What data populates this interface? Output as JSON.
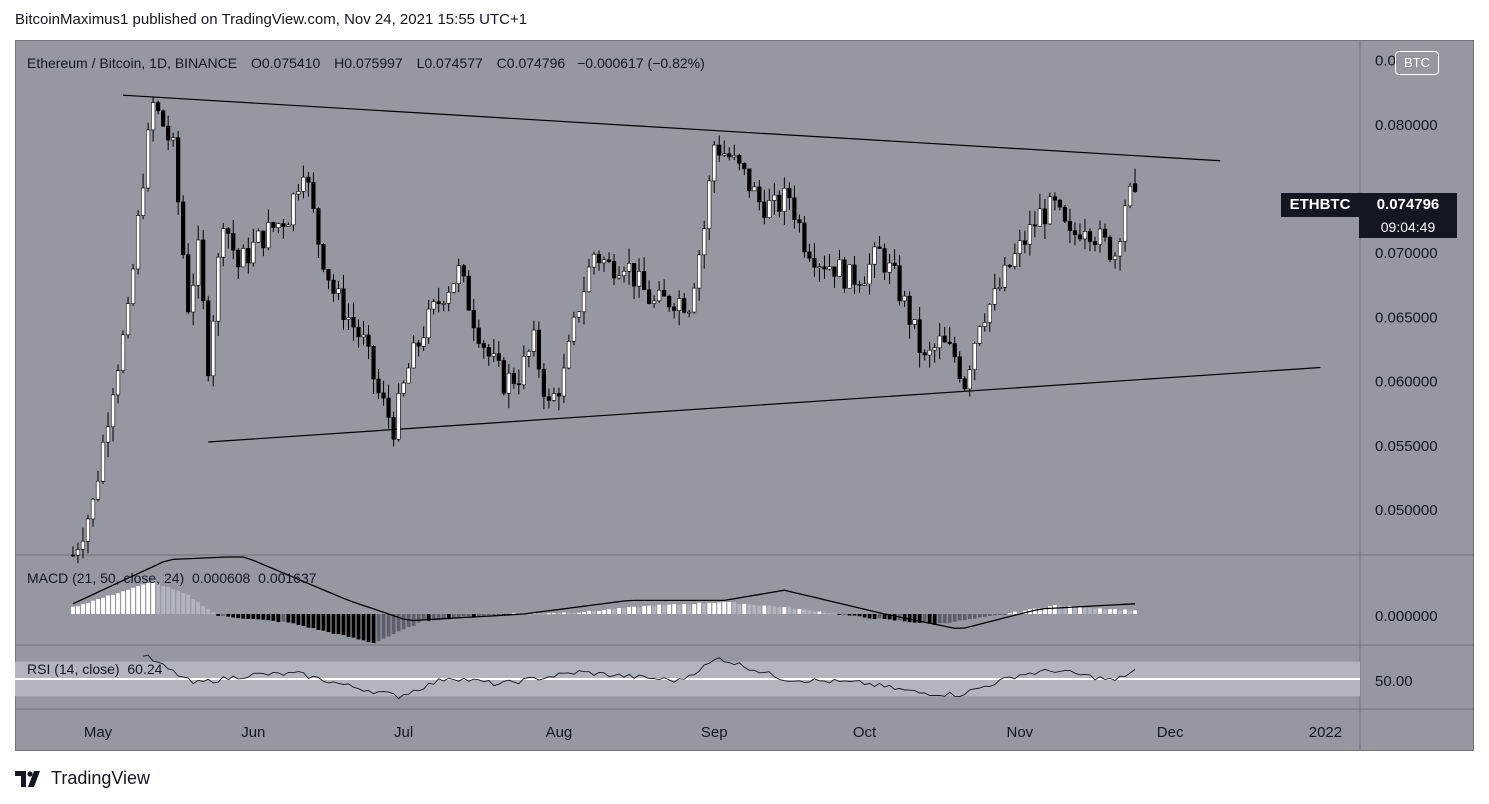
{
  "publisher_line": "BitcoinMaximus1 published on TradingView.com, Nov 24, 2021 15:55 UTC+1",
  "legend": {
    "symbol": "Ethereum / Bitcoin, 1D, BINANCE",
    "o_label": "O",
    "o_value": "0.075410",
    "h_label": "H",
    "h_value": "0.075997",
    "l_label": "L",
    "l_value": "0.074577",
    "c_label": "C",
    "c_value": "0.074796",
    "change": "−0.000617 (−0.82%)"
  },
  "currency_badge": "BTC",
  "price_tag": {
    "symbol": "ETHBTC",
    "price": "0.074796",
    "countdown": "09:04:49"
  },
  "macd_legend": {
    "label": "MACD (21, 50, close, 24)",
    "value1": "0.000608",
    "value2": "0.001637"
  },
  "rsi_legend": {
    "label": "RSI (14, close)",
    "value": "60.24"
  },
  "brand": "TradingView",
  "colors": {
    "background": "#9598a1",
    "up": "#ffffff",
    "down": "#000000",
    "line": "#000000"
  },
  "chart_data": {
    "type": "candlestick",
    "x_axis_labels": [
      "May",
      "Jun",
      "Jul",
      "Aug",
      "Sep",
      "Oct",
      "Nov",
      "Dec",
      "2022"
    ],
    "price_axis_labels": [
      "0.085000",
      "0.080000",
      "0.070000",
      "0.065000",
      "0.060000",
      "0.055000",
      "0.050000"
    ],
    "price_range": [
      0.0465,
      0.0866
    ],
    "macd_axis_label": "0.000000",
    "rsi_axis_label": "50.00",
    "rsi_band": [
      30,
      70
    ],
    "trendlines": [
      {
        "from": [
          "2021-05-06",
          0.0823
        ],
        "to": [
          "2021-12-11",
          0.0772
        ]
      },
      {
        "from": [
          "2021-05-23",
          0.0553
        ],
        "to": [
          "2021-12-31",
          0.0611
        ]
      }
    ],
    "daily_close_path": [
      [
        "2021-04-26",
        0.0465
      ],
      [
        "2021-04-30",
        0.0505
      ],
      [
        "2021-05-04",
        0.0598
      ],
      [
        "2021-05-07",
        0.065
      ],
      [
        "2021-05-10",
        0.076
      ],
      [
        "2021-05-12",
        0.0815
      ],
      [
        "2021-05-14",
        0.08
      ],
      [
        "2021-05-16",
        0.078
      ],
      [
        "2021-05-19",
        0.066
      ],
      [
        "2021-05-21",
        0.07
      ],
      [
        "2021-05-23",
        0.0615
      ],
      [
        "2021-05-26",
        0.073
      ],
      [
        "2021-05-29",
        0.069
      ],
      [
        "2021-06-02",
        0.071
      ],
      [
        "2021-06-05",
        0.072
      ],
      [
        "2021-06-08",
        0.073
      ],
      [
        "2021-06-11",
        0.077
      ],
      [
        "2021-06-14",
        0.071
      ],
      [
        "2021-06-17",
        0.067
      ],
      [
        "2021-06-20",
        0.065
      ],
      [
        "2021-06-23",
        0.063
      ],
      [
        "2021-06-26",
        0.059
      ],
      [
        "2021-06-29",
        0.0565
      ],
      [
        "2021-07-02",
        0.061
      ],
      [
        "2021-07-05",
        0.064
      ],
      [
        "2021-07-09",
        0.067
      ],
      [
        "2021-07-12",
        0.0685
      ],
      [
        "2021-07-15",
        0.065
      ],
      [
        "2021-07-18",
        0.062
      ],
      [
        "2021-07-21",
        0.06
      ],
      [
        "2021-07-24",
        0.0605
      ],
      [
        "2021-07-27",
        0.063
      ],
      [
        "2021-07-30",
        0.058
      ],
      [
        "2021-08-02",
        0.0605
      ],
      [
        "2021-08-05",
        0.066
      ],
      [
        "2021-08-08",
        0.07
      ],
      [
        "2021-08-11",
        0.069
      ],
      [
        "2021-08-14",
        0.0695
      ],
      [
        "2021-08-17",
        0.0675
      ],
      [
        "2021-08-20",
        0.066
      ],
      [
        "2021-08-24",
        0.0665
      ],
      [
        "2021-08-27",
        0.0662
      ],
      [
        "2021-08-30",
        0.072
      ],
      [
        "2021-09-01",
        0.0785
      ],
      [
        "2021-09-04",
        0.0775
      ],
      [
        "2021-09-07",
        0.076
      ],
      [
        "2021-09-10",
        0.074
      ],
      [
        "2021-09-13",
        0.0735
      ],
      [
        "2021-09-16",
        0.0745
      ],
      [
        "2021-09-19",
        0.071
      ],
      [
        "2021-09-22",
        0.0695
      ],
      [
        "2021-09-25",
        0.069
      ],
      [
        "2021-09-28",
        0.068
      ],
      [
        "2021-10-01",
        0.0685
      ],
      [
        "2021-10-04",
        0.07
      ],
      [
        "2021-10-07",
        0.068
      ],
      [
        "2021-10-10",
        0.065
      ],
      [
        "2021-10-13",
        0.0615
      ],
      [
        "2021-10-16",
        0.063
      ],
      [
        "2021-10-19",
        0.062
      ],
      [
        "2021-10-21",
        0.06
      ],
      [
        "2021-10-24",
        0.065
      ],
      [
        "2021-10-27",
        0.0665
      ],
      [
        "2021-10-30",
        0.069
      ],
      [
        "2021-11-02",
        0.071
      ],
      [
        "2021-11-05",
        0.073
      ],
      [
        "2021-11-08",
        0.0735
      ],
      [
        "2021-11-11",
        0.071
      ],
      [
        "2021-11-14",
        0.0725
      ],
      [
        "2021-11-17",
        0.071
      ],
      [
        "2021-11-20",
        0.07
      ],
      [
        "2021-11-22",
        0.074
      ],
      [
        "2021-11-24",
        0.074796
      ]
    ],
    "macd_histogram_path": [
      [
        "2021-04-26",
        0.2
      ],
      [
        "2021-05-12",
        0.95
      ],
      [
        "2021-05-19",
        0.55
      ],
      [
        "2021-05-25",
        -0.05
      ],
      [
        "2021-06-08",
        -0.25
      ],
      [
        "2021-06-25",
        -0.85
      ],
      [
        "2021-07-05",
        -0.2
      ],
      [
        "2021-07-20",
        0.0
      ],
      [
        "2021-08-05",
        0.05
      ],
      [
        "2021-08-20",
        0.25
      ],
      [
        "2021-09-03",
        0.35
      ],
      [
        "2021-09-15",
        0.2
      ],
      [
        "2021-10-01",
        -0.1
      ],
      [
        "2021-10-15",
        -0.3
      ],
      [
        "2021-10-25",
        -0.1
      ],
      [
        "2021-11-08",
        0.25
      ],
      [
        "2021-11-24",
        0.1
      ]
    ],
    "macd_line_path": [
      [
        "2021-04-26",
        0.3
      ],
      [
        "2021-05-15",
        1.6
      ],
      [
        "2021-05-30",
        1.7
      ],
      [
        "2021-06-20",
        0.4
      ],
      [
        "2021-07-02",
        -0.2
      ],
      [
        "2021-07-25",
        0.0
      ],
      [
        "2021-08-15",
        0.4
      ],
      [
        "2021-09-03",
        0.4
      ],
      [
        "2021-09-15",
        0.7
      ],
      [
        "2021-10-05",
        0.0
      ],
      [
        "2021-10-20",
        -0.45
      ],
      [
        "2021-11-05",
        0.15
      ],
      [
        "2021-11-24",
        0.3
      ]
    ],
    "rsi_path": [
      [
        "2021-05-10",
        78
      ],
      [
        "2021-05-20",
        45
      ],
      [
        "2021-06-01",
        55
      ],
      [
        "2021-06-10",
        56
      ],
      [
        "2021-06-20",
        42
      ],
      [
        "2021-06-30",
        30
      ],
      [
        "2021-07-10",
        52
      ],
      [
        "2021-07-20",
        44
      ],
      [
        "2021-08-05",
        58
      ],
      [
        "2021-08-25",
        48
      ],
      [
        "2021-09-02",
        74
      ],
      [
        "2021-09-15",
        50
      ],
      [
        "2021-10-01",
        45
      ],
      [
        "2021-10-12",
        34
      ],
      [
        "2021-10-20",
        32
      ],
      [
        "2021-11-01",
        55
      ],
      [
        "2021-11-08",
        60
      ],
      [
        "2021-11-20",
        48
      ],
      [
        "2021-11-24",
        60.24
      ]
    ]
  }
}
